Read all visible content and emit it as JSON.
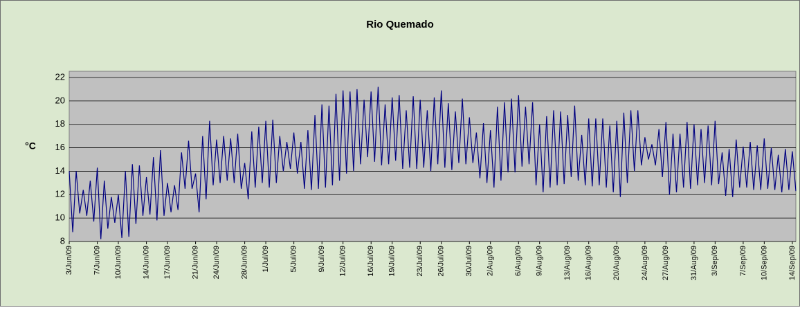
{
  "chart_data": {
    "type": "line",
    "title": "Rio Quemado",
    "y_label": "°C",
    "categories": [
      "3/Jun/09",
      null,
      null,
      null,
      null,
      null,
      null,
      null,
      "7/Jun/09",
      null,
      null,
      null,
      null,
      null,
      "10/Jun/09",
      null,
      null,
      null,
      null,
      null,
      null,
      null,
      "14/Jun/09",
      null,
      null,
      null,
      null,
      null,
      "17/Jun/09",
      null,
      null,
      null,
      null,
      null,
      null,
      null,
      "21/Jun/09",
      null,
      null,
      null,
      null,
      null,
      "24/Jun/09",
      null,
      null,
      null,
      null,
      null,
      null,
      null,
      "28/Jun/09",
      null,
      null,
      null,
      null,
      null,
      "1/Jul/09",
      null,
      null,
      null,
      null,
      null,
      null,
      null,
      "5/Jul/09",
      null,
      null,
      null,
      null,
      null,
      null,
      null,
      "9/Jul/09",
      null,
      null,
      null,
      null,
      null,
      "12/Jul/09",
      null,
      null,
      null,
      null,
      null,
      null,
      null,
      "16/Jul/09",
      null,
      null,
      null,
      null,
      null,
      "19/Jul/09",
      null,
      null,
      null,
      null,
      null,
      null,
      null,
      "23/Jul/09",
      null,
      null,
      null,
      null,
      null,
      "26/Jul/09",
      null,
      null,
      null,
      null,
      null,
      null,
      null,
      "30/Jul/09",
      null,
      null,
      null,
      null,
      null,
      "2/Aug/09",
      null,
      null,
      null,
      null,
      null,
      null,
      null,
      "6/Aug/09",
      null,
      null,
      null,
      null,
      null,
      "9/Aug/09",
      null,
      null,
      null,
      null,
      null,
      null,
      null,
      "13/Aug/09",
      null,
      null,
      null,
      null,
      null,
      "16/Aug/09",
      null,
      null,
      null,
      null,
      null,
      null,
      null,
      "20/Aug/09",
      null,
      null,
      null,
      null,
      null,
      null,
      null,
      "24/Aug/09",
      null,
      null,
      null,
      null,
      null,
      "27/Aug/09",
      null,
      null,
      null,
      null,
      null,
      null,
      null,
      "31/Aug/09",
      null,
      null,
      null,
      null,
      null,
      "3/Sep/09",
      null,
      null,
      null,
      null,
      null,
      null,
      null,
      "7/Sep/09",
      null,
      null,
      null,
      null,
      null,
      "10/Sep/09",
      null,
      null,
      null,
      null,
      null,
      null,
      null,
      "14/Sep/09",
      null
    ],
    "series": [
      {
        "name": "Rio Quemado",
        "color": "#000080",
        "values": [
          14,
          8.8,
          14,
          10.4,
          12.4,
          10.2,
          13.2,
          9.7,
          14.3,
          8.2,
          13.2,
          9.1,
          11.8,
          9.6,
          12,
          8.3,
          14,
          8.4,
          14.6,
          9.5,
          14.5,
          10.2,
          13.5,
          10.3,
          15.2,
          9.8,
          15.8,
          10.2,
          13,
          10.5,
          12.8,
          10.7,
          15.6,
          12.5,
          16.6,
          12.5,
          13.8,
          10.5,
          17,
          11.6,
          18.3,
          12.8,
          16.7,
          13,
          17,
          13.2,
          16.8,
          13,
          17.2,
          12.5,
          14.7,
          11.6,
          17.4,
          12.6,
          17.8,
          13,
          18.3,
          12.6,
          18.4,
          13,
          17,
          14,
          16.5,
          14.2,
          17.3,
          13.8,
          16.5,
          12.5,
          17.5,
          12.4,
          18.8,
          12.5,
          19.7,
          12.6,
          19.6,
          12.8,
          20.6,
          13.2,
          20.9,
          13.8,
          20.8,
          14,
          21,
          14.6,
          20.1,
          15.2,
          20.8,
          14.8,
          21.2,
          14.5,
          19.7,
          14.6,
          20.3,
          14.9,
          20.5,
          14.2,
          19.2,
          14.3,
          20.4,
          14.2,
          20.1,
          14.3,
          19.2,
          14,
          20.3,
          14.6,
          20.9,
          14.3,
          19.8,
          14.1,
          19.1,
          14.7,
          20.2,
          14.6,
          18.6,
          14.7,
          17.3,
          13.4,
          18.1,
          13,
          17.5,
          12.6,
          19.5,
          13.2,
          19.9,
          13.9,
          20.2,
          13.9,
          20.5,
          14.4,
          19.5,
          14.6,
          19.9,
          12.8,
          18,
          12.2,
          18.7,
          12.6,
          19.2,
          12.8,
          19.1,
          12.9,
          18.8,
          13.5,
          19.6,
          13.2,
          17.1,
          12.8,
          18.5,
          12.7,
          18.5,
          12.8,
          18.5,
          12.6,
          17.9,
          12.2,
          18.3,
          11.8,
          19,
          13,
          19.2,
          14,
          19.2,
          14.5,
          16.9,
          15,
          16.3,
          14.5,
          17.6,
          13.5,
          18.2,
          12,
          17.2,
          12.2,
          17.2,
          12.6,
          18.2,
          12.5,
          18,
          12.8,
          17.6,
          13,
          17.9,
          12.8,
          18.3,
          12.9,
          15.6,
          11.9,
          15.9,
          11.8,
          16.7,
          12.6,
          16.1,
          12.6,
          16.5,
          12.4,
          16.2,
          12.4,
          16.8,
          12.5,
          16,
          12.4,
          15.4,
          12.2,
          15.9,
          12.4,
          15.7,
          12.3
        ]
      }
    ],
    "ylim": [
      8,
      22
    ],
    "yticks": [
      8,
      10,
      12,
      14,
      16,
      18,
      20,
      22
    ],
    "grid": true
  }
}
